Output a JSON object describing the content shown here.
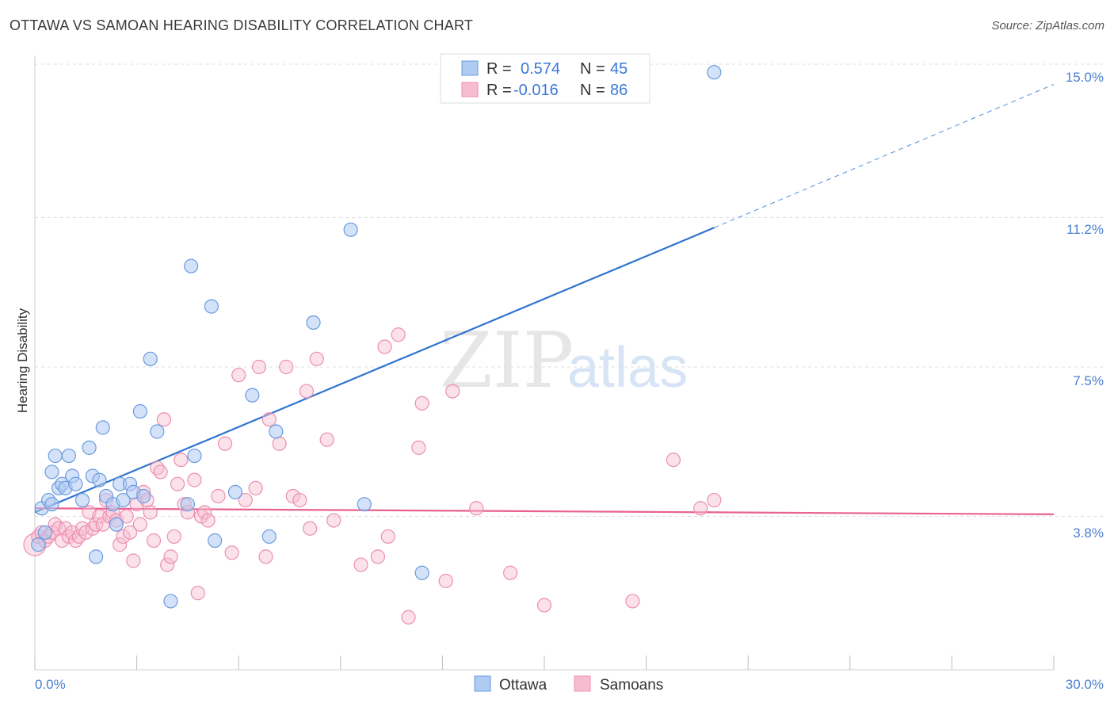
{
  "header": {
    "title": "OTTAWA VS SAMOAN HEARING DISABILITY CORRELATION CHART",
    "source": "Source: ZipAtlas.com"
  },
  "watermark": {
    "zip": "ZIP",
    "atlas": "atlas"
  },
  "colors": {
    "ottawa_fill": "#aecbf2",
    "ottawa_stroke": "#6b9be0",
    "ottawa_line": "#2f74d0",
    "samoan_fill": "#f7bcd0",
    "samoan_stroke": "#ec8fb0",
    "samoan_line": "#e8618f",
    "grid": "#dddddd",
    "axis_text": "#4a7fd0"
  },
  "legend": {
    "rows": [
      {
        "r_label": "R =",
        "r_value": "0.574",
        "n_label": "N =",
        "n_value": "45",
        "series": "ottawa"
      },
      {
        "r_label": "R =",
        "r_value": "-0.016",
        "n_label": "N =",
        "n_value": "86",
        "series": "samoan"
      }
    ]
  },
  "bottom_legend": {
    "ottawa": "Ottawa",
    "samoan": "Samoans"
  },
  "chart_data": {
    "type": "scatter",
    "title": "OTTAWA VS SAMOAN HEARING DISABILITY CORRELATION CHART",
    "xlabel": "",
    "ylabel": "Hearing Disability",
    "xlim": [
      0,
      30
    ],
    "ylim": [
      0,
      15.5
    ],
    "x_tick_labels": [
      "0.0%",
      "30.0%"
    ],
    "y_ticks": [
      3.8,
      7.5,
      11.2,
      15.0
    ],
    "y_tick_labels": [
      "3.8%",
      "7.5%",
      "11.2%",
      "15.0%"
    ],
    "series": [
      {
        "name": "Ottawa",
        "trend": {
          "x0": 0,
          "y0": 3.9,
          "x1": 20,
          "y1": 10.95,
          "dash_to_x": 30,
          "dash_to_y": 14.5
        },
        "points": [
          [
            0.2,
            4.0
          ],
          [
            0.3,
            3.4
          ],
          [
            0.4,
            4.2
          ],
          [
            0.5,
            4.1
          ],
          [
            0.5,
            4.9
          ],
          [
            0.6,
            5.3
          ],
          [
            0.7,
            4.5
          ],
          [
            0.8,
            4.6
          ],
          [
            0.9,
            4.5
          ],
          [
            1.0,
            5.3
          ],
          [
            1.1,
            4.8
          ],
          [
            1.2,
            4.6
          ],
          [
            1.4,
            4.2
          ],
          [
            1.6,
            5.5
          ],
          [
            1.7,
            4.8
          ],
          [
            1.8,
            2.8
          ],
          [
            1.9,
            4.7
          ],
          [
            2.0,
            6.0
          ],
          [
            2.1,
            4.3
          ],
          [
            2.3,
            4.1
          ],
          [
            2.4,
            3.6
          ],
          [
            2.5,
            4.6
          ],
          [
            2.6,
            4.2
          ],
          [
            2.8,
            4.6
          ],
          [
            2.9,
            4.4
          ],
          [
            3.1,
            6.4
          ],
          [
            3.2,
            4.3
          ],
          [
            3.4,
            7.7
          ],
          [
            3.6,
            5.9
          ],
          [
            4.0,
            1.7
          ],
          [
            4.5,
            4.1
          ],
          [
            4.6,
            10.0
          ],
          [
            4.7,
            5.3
          ],
          [
            5.2,
            9.0
          ],
          [
            5.3,
            3.2
          ],
          [
            5.9,
            4.4
          ],
          [
            6.4,
            6.8
          ],
          [
            6.9,
            3.3
          ],
          [
            7.1,
            5.9
          ],
          [
            8.2,
            8.6
          ],
          [
            9.3,
            10.9
          ],
          [
            9.7,
            4.1
          ],
          [
            11.4,
            2.4
          ],
          [
            20.0,
            14.8
          ],
          [
            0.1,
            3.1
          ]
        ]
      },
      {
        "name": "Samoans",
        "trend": {
          "x0": 0,
          "y0": 4.0,
          "x1": 30,
          "y1": 3.85
        },
        "points": [
          [
            0.0,
            3.1
          ],
          [
            0.1,
            3.3
          ],
          [
            0.2,
            3.4
          ],
          [
            0.3,
            3.2
          ],
          [
            0.4,
            3.3
          ],
          [
            0.5,
            3.4
          ],
          [
            0.6,
            3.6
          ],
          [
            0.7,
            3.5
          ],
          [
            0.8,
            3.2
          ],
          [
            0.9,
            3.5
          ],
          [
            1.0,
            3.3
          ],
          [
            1.1,
            3.4
          ],
          [
            1.2,
            3.2
          ],
          [
            1.3,
            3.3
          ],
          [
            1.4,
            3.5
          ],
          [
            1.5,
            3.4
          ],
          [
            1.6,
            3.9
          ],
          [
            1.7,
            3.5
          ],
          [
            1.8,
            3.6
          ],
          [
            1.9,
            3.8
          ],
          [
            2.0,
            3.6
          ],
          [
            2.1,
            4.2
          ],
          [
            2.2,
            3.8
          ],
          [
            2.3,
            3.9
          ],
          [
            2.4,
            3.7
          ],
          [
            2.5,
            3.1
          ],
          [
            2.6,
            3.3
          ],
          [
            2.7,
            3.8
          ],
          [
            2.8,
            3.4
          ],
          [
            2.9,
            2.7
          ],
          [
            3.0,
            4.1
          ],
          [
            3.1,
            3.6
          ],
          [
            3.2,
            4.4
          ],
          [
            3.3,
            4.2
          ],
          [
            3.4,
            3.9
          ],
          [
            3.5,
            3.2
          ],
          [
            3.6,
            5.0
          ],
          [
            3.7,
            4.9
          ],
          [
            3.8,
            6.2
          ],
          [
            3.9,
            2.6
          ],
          [
            4.0,
            2.8
          ],
          [
            4.1,
            3.3
          ],
          [
            4.2,
            4.6
          ],
          [
            4.3,
            5.2
          ],
          [
            4.4,
            4.1
          ],
          [
            4.5,
            3.9
          ],
          [
            4.7,
            4.7
          ],
          [
            4.8,
            1.9
          ],
          [
            4.9,
            3.8
          ],
          [
            5.0,
            3.9
          ],
          [
            5.1,
            3.7
          ],
          [
            5.4,
            4.3
          ],
          [
            5.6,
            5.6
          ],
          [
            5.8,
            2.9
          ],
          [
            6.0,
            7.3
          ],
          [
            6.2,
            4.2
          ],
          [
            6.5,
            4.5
          ],
          [
            6.6,
            7.5
          ],
          [
            6.8,
            2.8
          ],
          [
            6.9,
            6.2
          ],
          [
            7.2,
            5.6
          ],
          [
            7.4,
            7.5
          ],
          [
            7.6,
            4.3
          ],
          [
            7.8,
            4.2
          ],
          [
            8.0,
            6.9
          ],
          [
            8.1,
            3.5
          ],
          [
            8.3,
            7.7
          ],
          [
            8.6,
            5.7
          ],
          [
            8.8,
            3.7
          ],
          [
            9.6,
            2.6
          ],
          [
            10.1,
            2.8
          ],
          [
            10.3,
            8.0
          ],
          [
            10.4,
            3.3
          ],
          [
            10.7,
            8.3
          ],
          [
            11.0,
            1.3
          ],
          [
            11.4,
            6.6
          ],
          [
            11.3,
            5.5
          ],
          [
            12.1,
            2.2
          ],
          [
            12.3,
            6.9
          ],
          [
            13.0,
            4.0
          ],
          [
            14.0,
            2.4
          ],
          [
            15.0,
            1.6
          ],
          [
            17.6,
            1.7
          ],
          [
            18.8,
            5.2
          ],
          [
            19.6,
            4.0
          ],
          [
            20.0,
            4.2
          ]
        ]
      }
    ]
  }
}
